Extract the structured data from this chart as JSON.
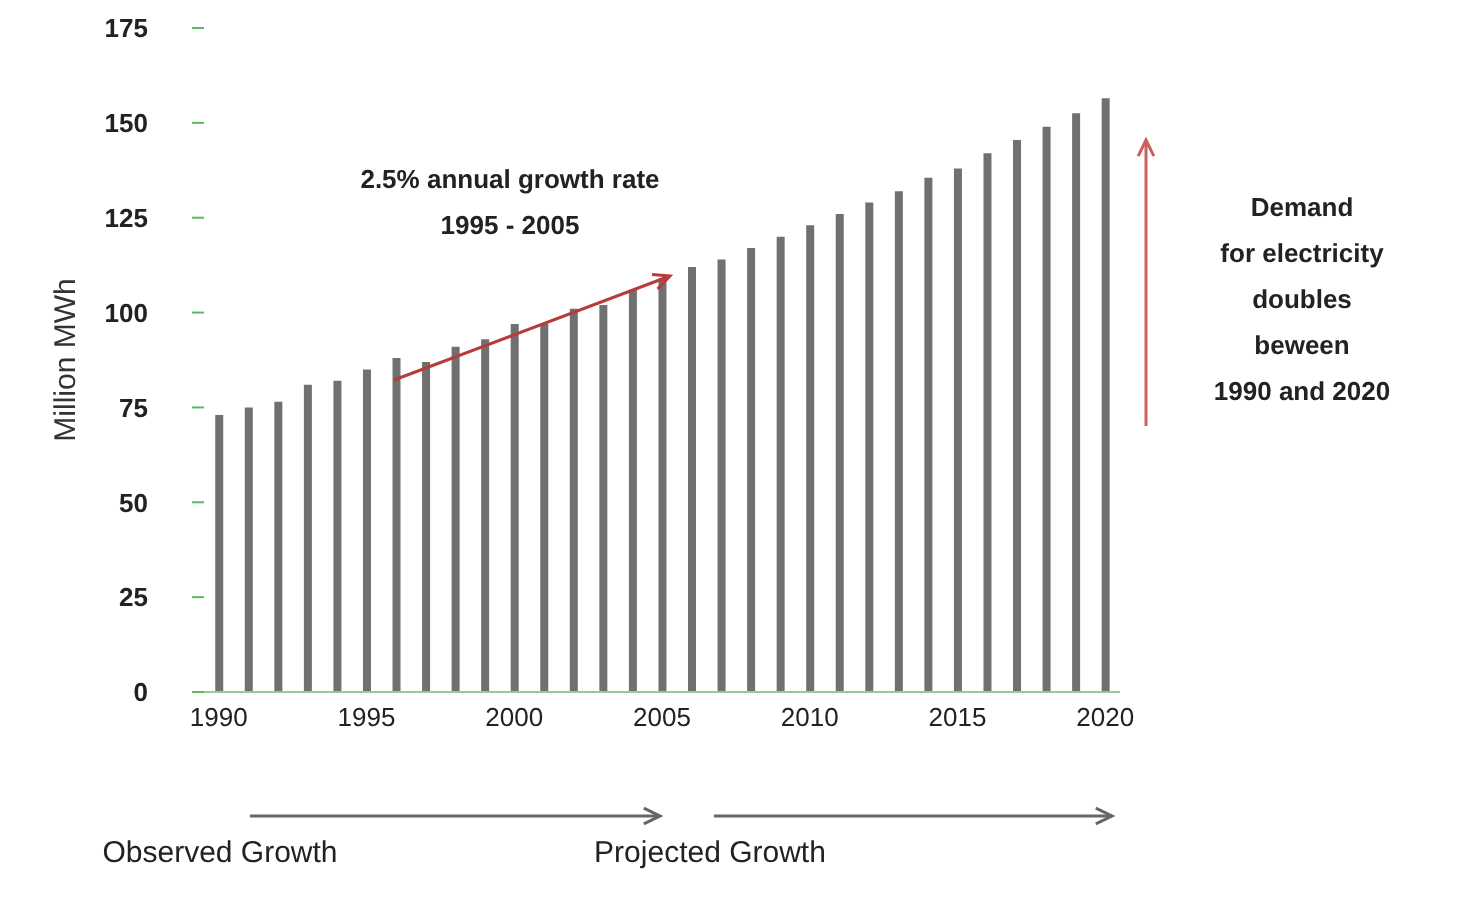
{
  "chart_data": {
    "type": "bar",
    "ylabel": "Million MWh",
    "categories": [
      "1990",
      null,
      null,
      null,
      null,
      "1995",
      null,
      null,
      null,
      null,
      "2000",
      null,
      null,
      null,
      null,
      "2005",
      null,
      null,
      null,
      null,
      "2010",
      null,
      null,
      null,
      null,
      "2015",
      null,
      null,
      null,
      null,
      "2020"
    ],
    "values": [
      73,
      75,
      76.5,
      81,
      82,
      85,
      88,
      87,
      91,
      93,
      97,
      97,
      101,
      102,
      106,
      109,
      112,
      114,
      117,
      120,
      123,
      126,
      129,
      132,
      135.5,
      138,
      142,
      145.5,
      149,
      152.5,
      156.5
    ],
    "color": "#707070",
    "ylim": [
      0,
      175
    ],
    "yticks": [
      0,
      25,
      50,
      75,
      100,
      125,
      150,
      175
    ],
    "grid": false,
    "annotations": [
      "2.5% annual growth rate\n1995 - 2005",
      "Demand\nfor electricity\ndoubles\nbeween\n1990 and 2020",
      "Observed  Growth",
      "Projected  Growth"
    ]
  }
}
